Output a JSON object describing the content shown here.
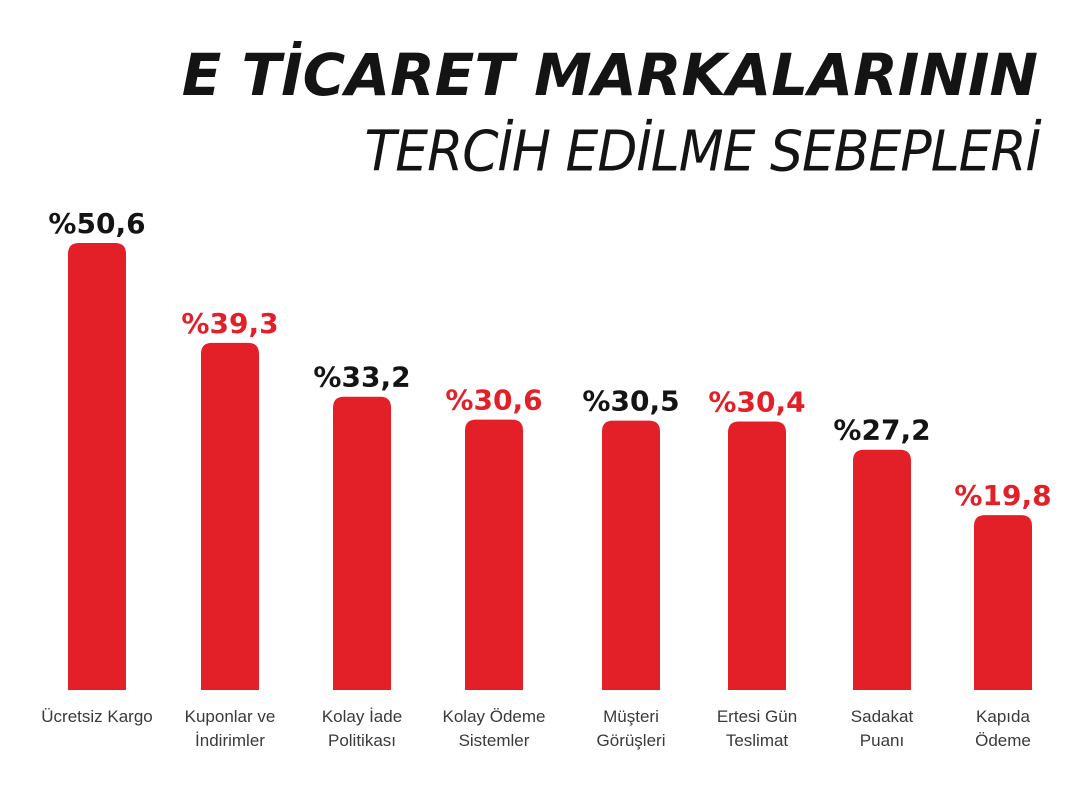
{
  "header": {
    "title": "E TİCARET MARKALARININ",
    "subtitle": "TERCİH EDİLME SEBEPLERİ"
  },
  "colors": {
    "bar": "#e32027",
    "label_dark": "#141414",
    "label_red": "#e32027",
    "category_text": "#3a3a3a"
  },
  "chart_data": {
    "type": "bar",
    "title": "E TİCARET MARKALARININ TERCİH EDİLME SEBEPLERİ",
    "categories": [
      [
        "Ücretsiz Kargo"
      ],
      [
        "Kuponlar ve",
        "İndirimler"
      ],
      [
        "Kolay İade",
        "Politikası"
      ],
      [
        "Kolay Ödeme",
        "Sistemler"
      ],
      [
        "Müşteri",
        "Görüşleri"
      ],
      [
        "Ertesi Gün",
        "Teslimat"
      ],
      [
        "Sadakat",
        "Puanı"
      ],
      [
        "Kapıda",
        "Ödeme"
      ]
    ],
    "values": [
      50.6,
      39.3,
      33.2,
      30.6,
      30.5,
      30.4,
      27.2,
      19.8
    ],
    "value_labels": [
      "%50,6",
      "%39,3",
      "%33,2",
      "%30,6",
      "%30,5",
      "%30,4",
      "%27,2",
      "%19,8"
    ],
    "label_colors": [
      "dark",
      "red",
      "dark",
      "red",
      "dark",
      "red",
      "dark",
      "red"
    ],
    "ylim": [
      0,
      50.6
    ],
    "xlabel": "",
    "ylabel": "",
    "grid": false,
    "legend": "none"
  }
}
